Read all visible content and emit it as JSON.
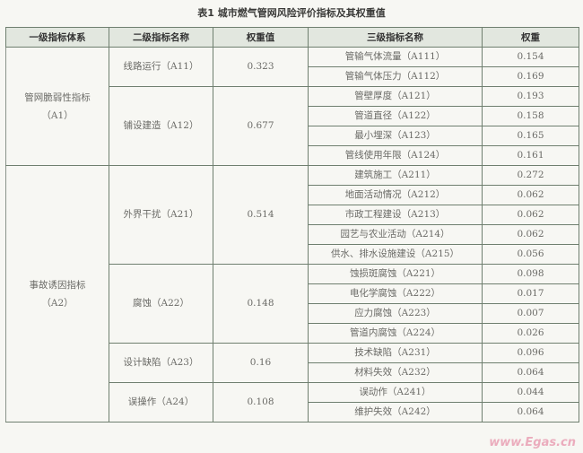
{
  "title": "表1  城市燃气管网风险评价指标及其权重值",
  "headers": [
    "一级指标体系",
    "二级指标名称",
    "权重值",
    "三级指标名称",
    "权重"
  ],
  "groups": [
    {
      "name_line1": "管网脆弱性指标",
      "name_line2": "（A1）",
      "subs": [
        {
          "name": "线路运行（A11）",
          "weight": "0.323",
          "items": [
            {
              "name": "管输气体流量（A111）",
              "weight": "0.154"
            },
            {
              "name": "管输气体压力（A112）",
              "weight": "0.169"
            }
          ]
        },
        {
          "name": "铺设建造（A12）",
          "weight": "0.677",
          "items": [
            {
              "name": "管壁厚度（A121）",
              "weight": "0.193"
            },
            {
              "name": "管道直径（A122）",
              "weight": "0.158"
            },
            {
              "name": "最小埋深（A123）",
              "weight": "0.165"
            },
            {
              "name": "管线使用年限（A124）",
              "weight": "0.161"
            }
          ]
        }
      ]
    },
    {
      "name_line1": "事故诱因指标",
      "name_line2": "（A2）",
      "subs": [
        {
          "name": "外界干扰（A21）",
          "weight": "0.514",
          "items": [
            {
              "name": "建筑施工（A211）",
              "weight": "0.272"
            },
            {
              "name": "地面活动情况（A212）",
              "weight": "0.062"
            },
            {
              "name": "市政工程建设（A213）",
              "weight": "0.062"
            },
            {
              "name": "园艺与农业活动（A214）",
              "weight": "0.062"
            },
            {
              "name": "供水、排水设施建设（A215）",
              "weight": "0.056"
            }
          ]
        },
        {
          "name": "腐蚀（A22）",
          "weight": "0.148",
          "items": [
            {
              "name": "蚀损斑腐蚀（A221）",
              "weight": "0.098"
            },
            {
              "name": "电化学腐蚀（A222）",
              "weight": "0.017"
            },
            {
              "name": "应力腐蚀（A223）",
              "weight": "0.007"
            },
            {
              "name": "管道内腐蚀（A224）",
              "weight": "0.026"
            }
          ]
        },
        {
          "name": "设计缺陷（A23）",
          "weight": "0.16",
          "items": [
            {
              "name": "技术缺陷（A231）",
              "weight": "0.096"
            },
            {
              "name": "材料失效（A232）",
              "weight": "0.064"
            }
          ]
        },
        {
          "name": "误操作（A24）",
          "weight": "0.108",
          "items": [
            {
              "name": "误动作（A241）",
              "weight": "0.044"
            },
            {
              "name": "维护失效（A242）",
              "weight": "0.064"
            }
          ]
        }
      ]
    }
  ],
  "watermark": "www.Egas.cn"
}
